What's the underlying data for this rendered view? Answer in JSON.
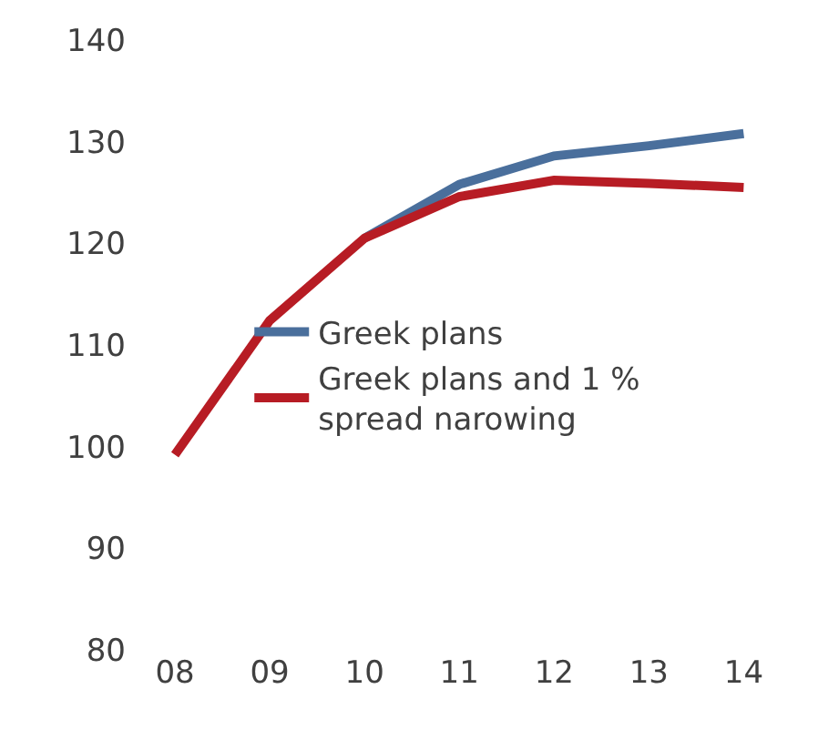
{
  "chart_data": {
    "type": "line",
    "categories": [
      "08",
      "09",
      "10",
      "11",
      "12",
      "13",
      "14"
    ],
    "series": [
      {
        "name": "Greek plans",
        "color": "#4a6f9c",
        "values": [
          null,
          null,
          120.5,
          125.8,
          128.6,
          129.6,
          130.8
        ]
      },
      {
        "name": "Greek plans and 1 %\nspread narowing",
        "color": "#b71c24",
        "values": [
          99.2,
          112.4,
          120.5,
          124.6,
          126.2,
          125.9,
          125.5
        ]
      }
    ],
    "ylim": [
      80,
      140
    ],
    "yticks": [
      80,
      90,
      100,
      110,
      120,
      130,
      140
    ],
    "legend": "center",
    "marker": "none",
    "line_style": "solid"
  }
}
